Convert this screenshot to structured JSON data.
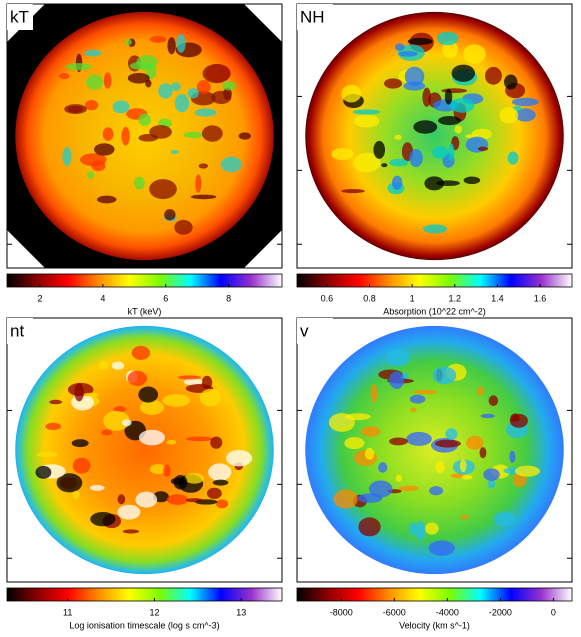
{
  "chart_data": [
    {
      "type": "heatmap",
      "title": "kT",
      "x_label": "kT (keV)",
      "xlim": [
        0.95,
        9.7
      ],
      "xticks": [
        2,
        4,
        6,
        8
      ],
      "colormap": [
        "#000000",
        "#8b0000",
        "#ff0000",
        "#ff8c00",
        "#ffff00",
        "#7cfc00",
        "#00ffff",
        "#0000ff",
        "#9932cc",
        "#ffffff"
      ]
    },
    {
      "type": "heatmap",
      "title": "NH",
      "x_label": "Absorption (10^22 cm^-2)",
      "xlim": [
        0.46,
        1.75
      ],
      "xticks": [
        0.6,
        0.8,
        1,
        1.2,
        1.4,
        1.6
      ],
      "colormap": [
        "#000000",
        "#8b0000",
        "#ff0000",
        "#ff8c00",
        "#ffff00",
        "#7cfc00",
        "#00ffff",
        "#0000ff",
        "#9932cc",
        "#ffffff"
      ]
    },
    {
      "type": "heatmap",
      "title": "nt",
      "x_label": "Log ionisation timescale (log s cm^-3)",
      "xlim": [
        10.3,
        13.47
      ],
      "xticks": [
        11,
        12,
        13
      ],
      "colormap": [
        "#000000",
        "#8b0000",
        "#ff0000",
        "#ff8c00",
        "#ffff00",
        "#7cfc00",
        "#00ffff",
        "#0000ff",
        "#9932cc",
        "#ffffff"
      ]
    },
    {
      "type": "heatmap",
      "title": "v",
      "x_label": "Velocity (km s^-1)",
      "xlim": [
        -9670,
        700
      ],
      "xticks": [
        -8000,
        -6000,
        -4000,
        -2000,
        0
      ],
      "colormap": [
        "#000000",
        "#8b0000",
        "#ff0000",
        "#ff8c00",
        "#ffff00",
        "#7cfc00",
        "#00ffff",
        "#0000ff",
        "#9932cc",
        "#ffffff"
      ]
    }
  ]
}
